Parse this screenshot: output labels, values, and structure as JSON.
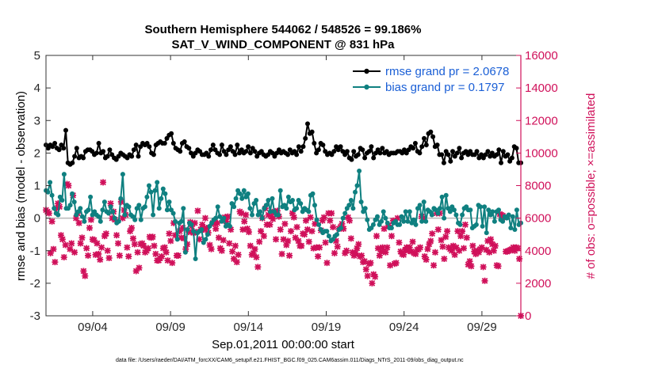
{
  "chart_data": {
    "type": "line",
    "title": [
      "Southern Hemisphere 544062 / 548526 = 99.186%",
      "SAT_V_WIND_COMPONENT @ 831 hPa"
    ],
    "xlabel": "Sep.01,2011 00:00:00 start",
    "ylabel": "rmse and bias (model - observation)",
    "ylabel_right": "# of obs: o=possible; ×=assimilated",
    "footnote": "data file: /Users/raeder/DAI/ATM_forcXX/CAM6_setup/f.e21.FHIST_BGC.f09_025.CAM6assim.011/Diags_NTrS_2011-09/obs_diag_output.nc",
    "x_range": [
      1,
      31.5
    ],
    "ylim": [
      -3,
      5
    ],
    "ylim_right": [
      0,
      16000
    ],
    "x_ticks": [
      {
        "value": 4,
        "label": "09/04"
      },
      {
        "value": 9,
        "label": "09/09"
      },
      {
        "value": 14,
        "label": "09/14"
      },
      {
        "value": 19,
        "label": "09/19"
      },
      {
        "value": 24,
        "label": "09/24"
      },
      {
        "value": 29,
        "label": "09/29"
      }
    ],
    "y_ticks": [
      {
        "value": -3,
        "label": "-3"
      },
      {
        "value": -2,
        "label": "-2"
      },
      {
        "value": -1,
        "label": "-1"
      },
      {
        "value": 0,
        "label": "0"
      },
      {
        "value": 1,
        "label": "1"
      },
      {
        "value": 2,
        "label": "2"
      },
      {
        "value": 3,
        "label": "3"
      },
      {
        "value": 4,
        "label": "4"
      },
      {
        "value": 5,
        "label": "5"
      }
    ],
    "y_ticks_right": [
      {
        "value": 0,
        "label": "0"
      },
      {
        "value": 2000,
        "label": "2000"
      },
      {
        "value": 4000,
        "label": "4000"
      },
      {
        "value": 6000,
        "label": "6000"
      },
      {
        "value": 8000,
        "label": "8000"
      },
      {
        "value": 10000,
        "label": "10000"
      },
      {
        "value": 12000,
        "label": "12000"
      },
      {
        "value": 14000,
        "label": "14000"
      },
      {
        "value": 16000,
        "label": "16000"
      }
    ],
    "legend_position": "top-right",
    "colors": {
      "rmse": "#000000",
      "bias": "#0f8080",
      "obs": "#d0105a",
      "zero": "#b8b8b8"
    },
    "series": [
      {
        "name": "rmse grand pr = 2.0678",
        "color": "#000000",
        "values": [
          2.25,
          2.15,
          2.25,
          2.2,
          2.3,
          2.15,
          2.1,
          2.25,
          2.15,
          2.7,
          1.7,
          1.65,
          1.7,
          1.9,
          2.15,
          1.85,
          1.9,
          1.85,
          2.05,
          2.1,
          2.1,
          2.05,
          1.95,
          2.0,
          2.3,
          2.0,
          2.05,
          1.85,
          1.9,
          2.1,
          1.95,
          1.85,
          1.8,
          1.9,
          2.0,
          1.95,
          1.9,
          1.85,
          1.95,
          1.9,
          2.1,
          2.25,
          1.9,
          2.2,
          2.3,
          2.25,
          2.3,
          2.2,
          2.0,
          1.95,
          2.25,
          2.3,
          2.35,
          2.3,
          2.3,
          2.45,
          2.55,
          2.6,
          2.3,
          2.15,
          2.1,
          2.05,
          2.3,
          2.35,
          2.2,
          2.15,
          2.0,
          1.9,
          2.0,
          2.1,
          2.05,
          1.95,
          1.95,
          2.0,
          1.9,
          2.1,
          2.25,
          2.1,
          2.0,
          1.95,
          2.25,
          2.05,
          1.95,
          2.1,
          2.2,
          2.05,
          1.95,
          2.25,
          2.0,
          2.1,
          2.0,
          2.05,
          2.2,
          2.0,
          2.15,
          2.05,
          1.9,
          2.0,
          2.05,
          1.95,
          1.9,
          1.95,
          2.05,
          2.0,
          1.9,
          2.0,
          2.1,
          2.0,
          2.05,
          2.0,
          1.95,
          2.1,
          2.0,
          2.05,
          1.95,
          2.2,
          2.05,
          2.2,
          2.45,
          2.9,
          2.6,
          2.65,
          2.3,
          2.0,
          2.1,
          2.3,
          2.25,
          2.05,
          1.95,
          2.0,
          1.95,
          2.05,
          2.2,
          2.1,
          2.2,
          2.05,
          1.95,
          2.05,
          1.85,
          1.8,
          2.05,
          1.9,
          1.95,
          2.15,
          2.1,
          1.85,
          2.0,
          2.05,
          2.2,
          1.85,
          2.0,
          2.1,
          2.0,
          2.15,
          2.0,
          2.05,
          1.95,
          2.0,
          2.0,
          2.0,
          2.05,
          2.05,
          2.0,
          2.1,
          2.0,
          2.1,
          2.2,
          2.15,
          2.3,
          2.05,
          2.0,
          2.2,
          2.45,
          2.25,
          2.6,
          2.65,
          2.5,
          2.2,
          2.25,
          1.95,
          1.95,
          1.7,
          2.05,
          1.95,
          1.75,
          2.05,
          1.9,
          2.0,
          2.15,
          1.85,
          2.0,
          2.05,
          1.95,
          2.05,
          1.95,
          1.95,
          2.05,
          1.85,
          1.95,
          1.85,
          1.95,
          2.05,
          1.9,
          2.0,
          1.9,
          1.95,
          2.1,
          1.7,
          2.05,
          1.9,
          1.95,
          1.75,
          1.85,
          2.2,
          2.15,
          1.7,
          1.7
        ]
      },
      {
        "name": "bias grand pr = 0.1797",
        "color": "#0f8080",
        "values": [
          0.85,
          0.8,
          1.1,
          0.7,
          0.3,
          0.15,
          0.1,
          0.65,
          0.55,
          1.35,
          0.3,
          0.3,
          0.4,
          0.75,
          0.5,
          0.1,
          0.2,
          0.3,
          0.05,
          -0.1,
          0.2,
          0.25,
          0.65,
          0.1,
          0.2,
          0.1,
          0.05,
          -0.1,
          0.25,
          0.5,
          0.2,
          0.15,
          0.35,
          0.2,
          0.0,
          -0.15,
          -0.1,
          0.6,
          1.35,
          0.1,
          0.4,
          0.35,
          0.1,
          0.05,
          -0.05,
          0.3,
          0.4,
          -0.05,
          0.3,
          0.35,
          0.65,
          1.0,
          0.8,
          0.1,
          0.85,
          1.1,
          0.3,
          0.6,
          0.9,
          0.75,
          0.25,
          0.5,
          0.25,
          0.15,
          -0.1,
          -0.65,
          -0.15,
          -0.1,
          0.3,
          -1.05,
          -0.35,
          -0.15,
          -0.2,
          -0.4,
          -1.25,
          -0.45,
          -0.4,
          -0.35,
          -0.75,
          -0.65,
          -0.5,
          -0.25,
          -0.15,
          -0.05,
          0.0,
          0.35,
          0.05,
          -0.1,
          0.0,
          -0.25,
          -0.2,
          -0.25,
          0.45,
          0.35,
          0.6,
          0.85,
          0.75,
          0.6,
          0.85,
          0.65,
          0.75,
          0.3,
          0.1,
          0.45,
          0.55,
          0.1,
          0.2,
          0.0,
          0.3,
          0.4,
          0.55,
          0.2,
          0.6,
          0.2,
          0.1,
          0.1,
          0.85,
          0.35,
          0.4,
          0.3,
          0.65,
          0.5,
          0.55,
          0.25,
          0.3,
          0.55,
          0.45,
          0.2,
          0.3,
          0.25,
          0.2,
          0.7,
          0.75,
          0.4,
          -0.05,
          -0.2,
          -0.35,
          -0.45,
          -0.4,
          -0.4,
          -0.55,
          -0.7,
          -0.65,
          -0.55,
          -0.5,
          -0.35,
          -0.3,
          0.0,
          0.15,
          0.3,
          0.4,
          0.55,
          0.3,
          0.8,
          1.0,
          1.45,
          0.5,
          0.2,
          0.3,
          -0.05,
          -0.35,
          -0.3,
          -0.2,
          -0.05,
          0.05,
          -0.2,
          -0.1,
          0.2,
          0.0,
          -0.15,
          -0.3,
          -0.3,
          -0.15,
          -0.1,
          -0.2,
          -0.2,
          0.05,
          -0.1,
          0.2,
          -0.1,
          0.2,
          -0.15,
          -0.05,
          -0.2,
          0.3,
          0.4,
          -0.1,
          0.5,
          -0.1,
          0.25,
          0.2,
          0.1,
          0.3,
          0.25,
          0.15,
          0.3,
          0.65,
          0.0,
          0.7,
          0.3,
          0.2,
          0.35,
          0.25,
          0.1,
          -0.15,
          -0.2,
          0.1,
          0.3,
          0.35,
          0.25,
          0.25,
          -0.3,
          -0.25,
          -0.2,
          0.4,
          0.35,
          -0.25,
          0.35,
          -0.45,
          0.25,
          0.1,
          0.2,
          -0.1,
          0.2,
          0.25,
          -0.05,
          -0.1,
          0.05,
          0.0,
          0.1,
          -0.3,
          0.05,
          -0.35,
          0.25,
          -0.2,
          -0.15
        ]
      },
      {
        "name": "obs assimilated",
        "color": "#d0105a",
        "values": [
          6500,
          6400,
          6300,
          3850,
          5800,
          4100,
          3300,
          6600,
          6900,
          6700,
          4950,
          4700,
          3600,
          4350,
          8100,
          8000,
          4100,
          4450,
          7400,
          3900,
          6000,
          6300,
          5700,
          4450,
          4800,
          2750,
          2450,
          4150,
          3700,
          5400,
          5900,
          4700,
          4650,
          3750,
          4450,
          3800,
          3450,
          4200,
          8200,
          4900,
          5050,
          4000,
          3550,
          6900,
          6000,
          6400,
          5900,
          4950,
          4450,
          3700,
          7000,
          6000,
          6500,
          6200,
          4200,
          3650,
          5200,
          5400,
          4750,
          4400,
          2750,
          3900,
          2950,
          4400,
          4450,
          4300,
          3900,
          4000,
          4150,
          4850,
          4800,
          4850,
          4300,
          3800,
          3400,
          3400,
          3550,
          3650,
          4150,
          4200,
          3900,
          3400,
          5050,
          4600,
          3250,
          5700,
          4950,
          3700,
          3700,
          5200,
          4800,
          5400,
          4750,
          4100,
          4400,
          5150,
          5750,
          5500,
          5100,
          5700,
          5150,
          6450,
          4700,
          5300,
          5600,
          5300,
          6000,
          5400,
          5100,
          4350,
          4100,
          5700,
          5700,
          5350,
          5700,
          4800,
          4150,
          4000,
          4650,
          6050,
          5800,
          6100,
          4450,
          5300,
          3950,
          3500,
          4300,
          3300,
          3750,
          6400,
          6300,
          5300,
          5800,
          6200,
          5350,
          5150,
          4300,
          3750,
          3850,
          4100,
          3600,
          3000,
          4550,
          5200,
          6000,
          4900,
          6600,
          5600,
          6200,
          5600,
          6100,
          5950,
          6400,
          4700,
          6450,
          6100,
          5300,
          3800,
          4700,
          5650,
          4350,
          4600,
          3700,
          5200,
          6300,
          6050,
          4800,
          5450,
          4600,
          4300,
          4300,
          5050,
          5000,
          5850,
          5300,
          4550,
          6050,
          5200,
          4150,
          5650,
          4200,
          3650,
          4200,
          5250,
          5850,
          6050,
          4500,
          3250,
          6300,
          5850,
          6300,
          5450,
          3850,
          4600,
          4250,
          5350,
          5450,
          5650,
          5350,
          3850,
          4000,
          6050,
          5850,
          4750,
          3900,
          3700,
          3850,
          4150,
          4400,
          3650,
          3700,
          3300,
          3350,
          2850,
          2450,
          3200,
          3250,
          2000,
          2550,
          2400,
          4900,
          4150,
          3700,
          3950,
          4200,
          5350,
          3900,
          4200,
          5550,
          3100,
          4900,
          5850,
          3200,
          3250,
          6000,
          4500,
          3950,
          3800,
          3750,
          4050,
          4200,
          4000,
          4200,
          3950,
          4550,
          3850,
          3800,
          4050,
          4100,
          4200,
          6100,
          6000,
          3650,
          3450,
          4100,
          4400,
          4600,
          5050,
          3100,
          3900,
          6300,
          5300,
          6300,
          4650,
          4250,
          3500,
          4850,
          5200,
          4200,
          4100,
          4000,
          4300,
          3750,
          4200,
          5200,
          4000,
          4900,
          5200,
          4150,
          5600,
          4800,
          3150,
          3350,
          3050,
          4300,
          3950,
          3800,
          4000,
          3900,
          4100,
          4200,
          3000,
          2150,
          4050,
          4600,
          3900,
          4700,
          4400,
          4000,
          4300,
          3100,
          3050,
          6250,
          6200,
          6150,
          6050,
          3950,
          3950,
          4000,
          4050,
          4100,
          4200,
          4000,
          4200,
          4150,
          3500,
          0
        ]
      }
    ]
  }
}
